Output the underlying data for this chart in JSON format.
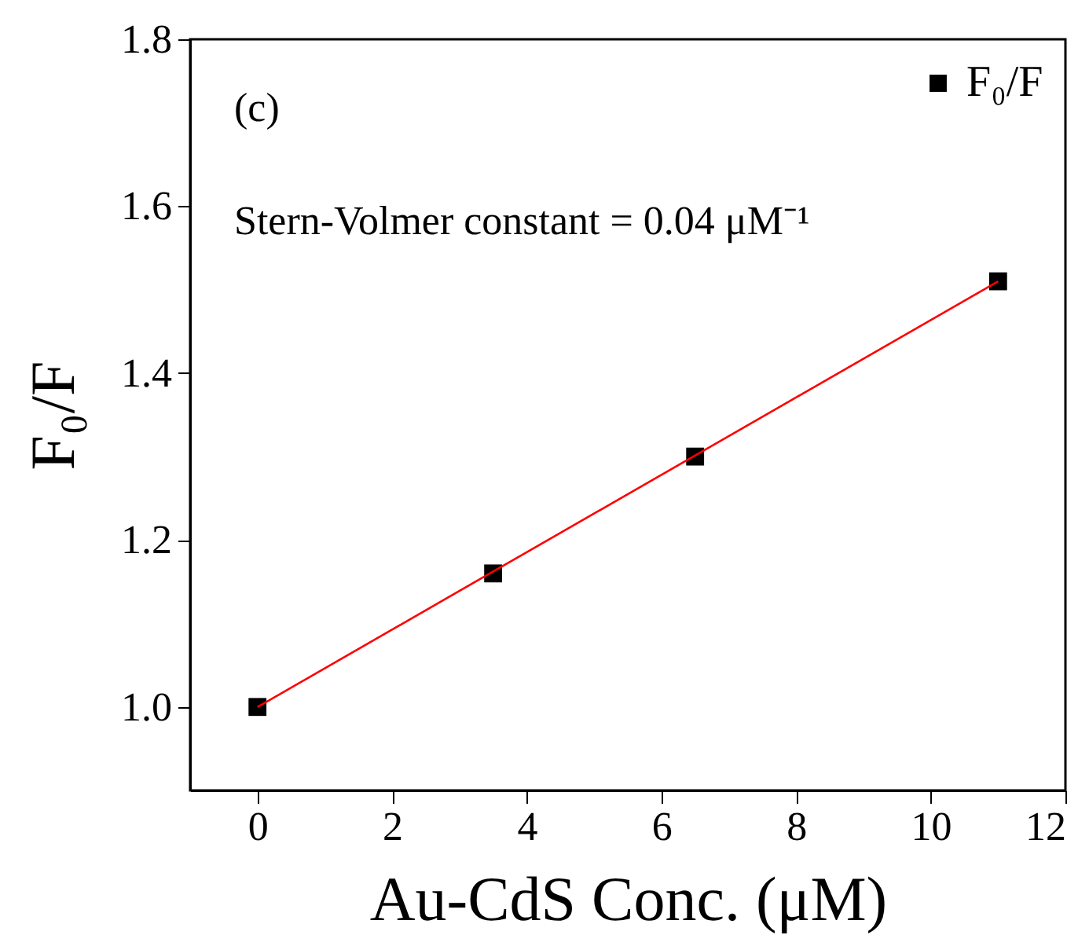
{
  "chart_data": {
    "type": "scatter",
    "xlabel": "Au-CdS Conc. (μM)",
    "ylabel": "F₀/F",
    "annotations": [
      "(c)",
      "Stern-Volmer constant = 0.04 μM⁻¹"
    ],
    "x": [
      0,
      3.5,
      6.5,
      11
    ],
    "series": [
      {
        "name": "F₀/F",
        "color": "#000000",
        "marker": "square",
        "values": [
          1.0,
          1.16,
          1.3,
          1.51
        ]
      },
      {
        "type": "line",
        "color": "#ff0000",
        "x": [
          0,
          11
        ],
        "values": [
          1.0,
          1.51
        ]
      }
    ],
    "xlim": [
      -1,
      12
    ],
    "xticks": [
      0,
      2,
      4,
      6,
      8,
      10,
      12
    ],
    "ylim": [
      0.9,
      1.8
    ],
    "yticks": [
      {
        "value": 1.0,
        "label": "1.0"
      },
      {
        "value": 1.2,
        "label": "1.2"
      },
      {
        "value": 1.4,
        "label": "1.4"
      },
      {
        "value": 1.6,
        "label": "1.6"
      },
      {
        "value": 1.8,
        "label": "1.8"
      }
    ],
    "grid": false,
    "legend": "top right"
  }
}
